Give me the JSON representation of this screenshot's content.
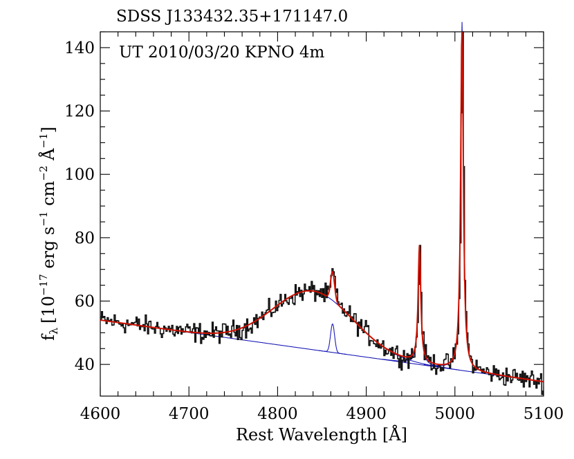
{
  "chart_data": {
    "type": "line",
    "title": "SDSS J133432.35+171147.0",
    "annotation": "UT 2010/03/20 KPNO 4m",
    "xlabel": "Rest Wavelength [Å]",
    "ylabel_parts": {
      "main": "f",
      "sub": "λ",
      "bracket_open": "[10",
      "exp1": "−17",
      "mid1": " erg s",
      "exp2": "−1",
      "mid2": " cm",
      "exp3": "−2",
      "mid3": " Å",
      "exp4": "−1",
      "bracket_close": "]"
    },
    "xlim": [
      4600,
      5100
    ],
    "ylim": [
      30,
      145
    ],
    "xticks": [
      4600,
      4700,
      4800,
      4900,
      5000,
      5100
    ],
    "yticks": [
      40,
      60,
      80,
      100,
      120,
      140
    ],
    "colors": {
      "observed": "#111111",
      "fit": "#cc1100",
      "components": "#1a1ab8"
    },
    "model": {
      "continuum": {
        "x": [
          4600,
          5100
        ],
        "y": [
          54,
          34.5
        ]
      },
      "broad_hbeta": {
        "center": 4840,
        "peak": 18.5,
        "sigma": 45
      },
      "narrow_hbeta": {
        "center": 4862,
        "peak": 9.0,
        "sigma": 2.3
      },
      "oiii_4959": {
        "center": 4960,
        "peak": 37.0,
        "gamma": 1.8
      },
      "oiii_5007": {
        "center": 5008,
        "peak": 110.0,
        "gamma": 1.8
      }
    },
    "noise_amplitude": 1.6,
    "sample_step": 1.3
  }
}
